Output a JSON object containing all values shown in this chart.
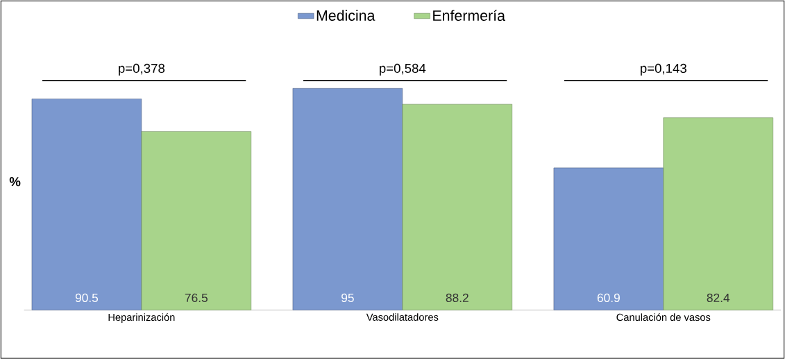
{
  "chart_data": {
    "type": "bar",
    "ylabel": "%",
    "categories": [
      "Heparinización",
      "Vasodilatadores",
      "Canulación de vasos"
    ],
    "series": [
      {
        "name": "Medicina",
        "color": "#7b98cf",
        "values": [
          90.5,
          95,
          60.9
        ]
      },
      {
        "name": "Enfermería",
        "color": "#a8d48b",
        "values": [
          76.5,
          88.2,
          82.4
        ]
      }
    ],
    "data_labels": true,
    "legend": "top",
    "annotations": [
      "p=0,378",
      "p=0,584",
      "p=0,143"
    ]
  }
}
